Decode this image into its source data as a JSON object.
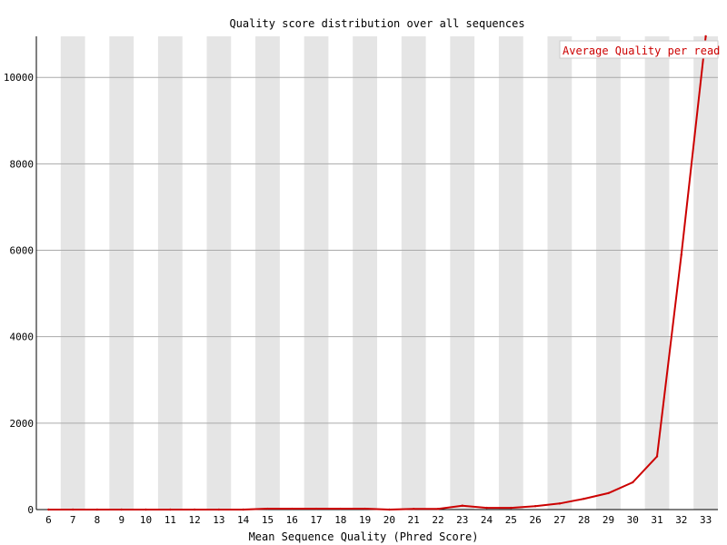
{
  "chart_data": {
    "type": "line",
    "title": "Quality score distribution over all sequences",
    "xlabel": "Mean Sequence Quality (Phred Score)",
    "ylabel": "",
    "x": [
      6,
      7,
      8,
      9,
      10,
      11,
      12,
      13,
      14,
      15,
      16,
      17,
      18,
      19,
      20,
      21,
      22,
      23,
      24,
      25,
      26,
      27,
      28,
      29,
      30,
      31,
      32,
      33
    ],
    "series": [
      {
        "name": "Average Quality per read",
        "values": [
          0,
          0,
          0,
          0,
          0,
          0,
          0,
          0,
          0,
          20,
          20,
          20,
          20,
          20,
          0,
          15,
          15,
          90,
          40,
          40,
          80,
          140,
          250,
          380,
          630,
          1230,
          5900,
          10950
        ]
      }
    ],
    "ylim": [
      0,
      10950
    ],
    "yticks": [
      0,
      2000,
      4000,
      6000,
      8000,
      10000
    ],
    "grid": true,
    "legend_position": "top-right",
    "colors": {
      "line": "#cc0000",
      "stripe": "#e5e5e5",
      "grid": "#aaaaaa",
      "axis": "#000000"
    }
  }
}
